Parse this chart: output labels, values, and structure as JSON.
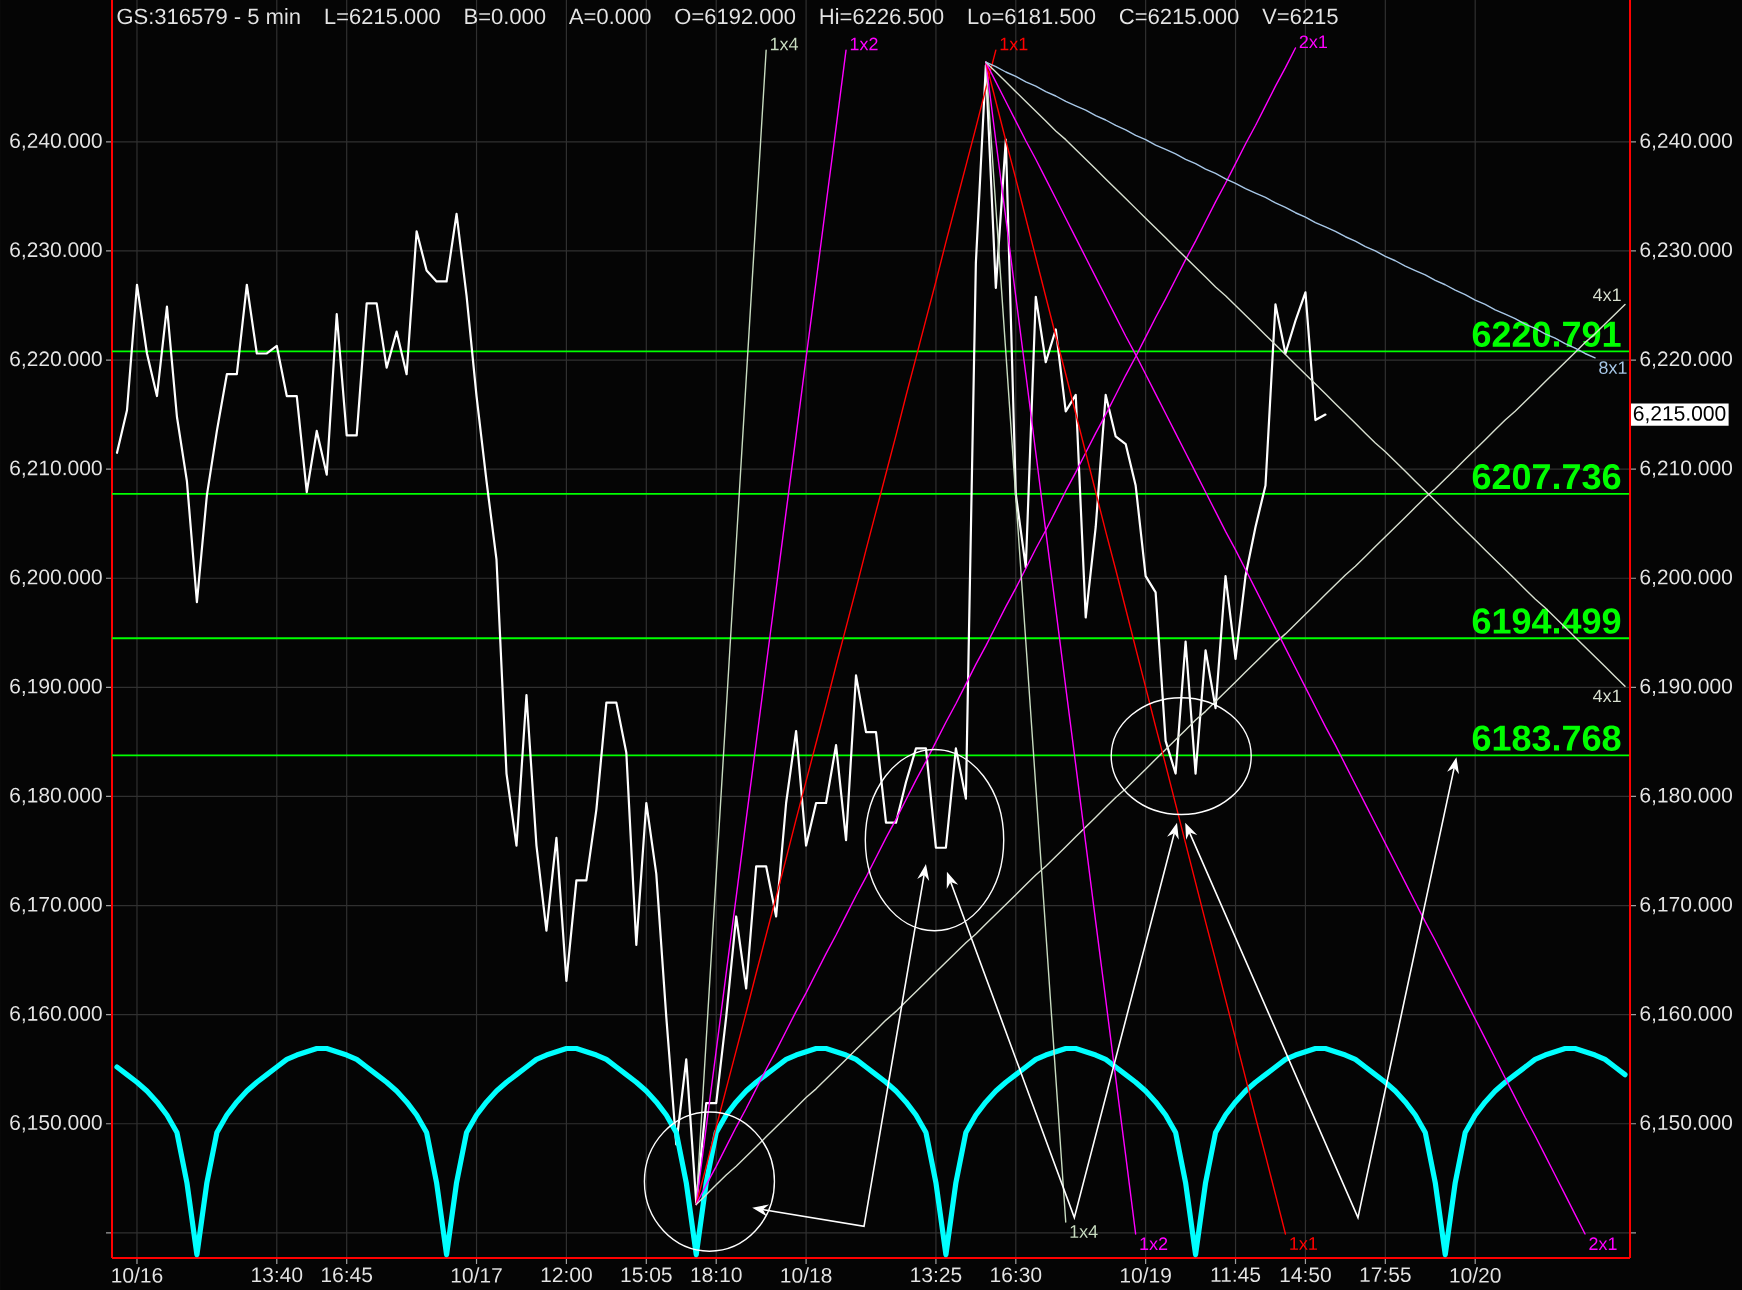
{
  "chart_data": {
    "type": "line",
    "title": "GS:316579 - 5 min",
    "annotations": [
      "L=6215.000",
      "B=0.000",
      "A=0.000",
      "O=6192.000",
      "Hi=6226.500",
      "Lo=6181.500",
      "C=6215.000",
      "V=6215",
      "6,215.000"
    ],
    "categories": [
      null,
      null,
      "10/16",
      null,
      null,
      null,
      null,
      null,
      null,
      null,
      null,
      null,
      null,
      null,
      null,
      null,
      "13:40",
      null,
      null,
      null,
      null,
      null,
      null,
      "16:45",
      null,
      null,
      null,
      null,
      null,
      null,
      null,
      null,
      null,
      null,
      null,
      null,
      "10/17",
      null,
      null,
      null,
      null,
      null,
      null,
      null,
      null,
      "12:00",
      null,
      null,
      null,
      null,
      null,
      null,
      null,
      "15:05",
      null,
      null,
      null,
      null,
      null,
      null,
      "18:10",
      null,
      null,
      null,
      null,
      null,
      null,
      null,
      null,
      "10/18",
      null,
      null,
      null,
      null,
      null,
      null,
      null,
      null,
      null,
      null,
      null,
      null,
      "13:25",
      null,
      null,
      null,
      null,
      null,
      null,
      null,
      "16:30",
      null,
      null,
      null,
      null,
      null,
      null,
      null,
      null,
      null,
      null,
      null,
      null,
      "10/19",
      null,
      null,
      null,
      null,
      null,
      null,
      null,
      null,
      "11:45",
      null,
      null,
      null,
      null,
      null,
      null,
      "14:50",
      null,
      null,
      null,
      null,
      null,
      null,
      null,
      "17:55",
      null,
      null,
      null,
      null,
      null,
      null,
      null,
      null,
      "10/20",
      null,
      null,
      null,
      null,
      null,
      null,
      null,
      null,
      null,
      null,
      null,
      null,
      null,
      null,
      null
    ],
    "ylim": [
      6137.7,
      6253
    ],
    "yticks": [
      {
        "value": 6140,
        "label": null
      },
      {
        "value": 6150,
        "label": "6,150.000"
      },
      {
        "value": 6160,
        "label": "6,160.000"
      },
      {
        "value": 6170,
        "label": "6,170.000"
      },
      {
        "value": 6180,
        "label": "6,180.000"
      },
      {
        "value": 6190,
        "label": "6,190.000"
      },
      {
        "value": 6200,
        "label": "6,200.000"
      },
      {
        "value": 6210,
        "label": "6,210.000"
      },
      {
        "value": 6220,
        "label": "6,220.000"
      },
      {
        "value": 6230,
        "label": "6,230.000"
      },
      {
        "value": 6240,
        "label": "6,240.000"
      }
    ],
    "y2lim": [
      6137.7,
      6253
    ],
    "y2ticks": [
      {
        "value": 6140,
        "label": null
      },
      {
        "value": 6150,
        "label": "6,150.000"
      },
      {
        "value": 6160,
        "label": "6,160.000"
      },
      {
        "value": 6170,
        "label": "6,170.000"
      },
      {
        "value": 6180,
        "label": "6,180.000"
      },
      {
        "value": 6190,
        "label": "6,190.000"
      },
      {
        "value": 6200,
        "label": "6,200.000"
      },
      {
        "value": 6210,
        "label": "6,210.000"
      },
      {
        "value": 6220,
        "label": "6,220.000"
      },
      {
        "value": 6230,
        "label": "6,230.000"
      },
      {
        "value": 6240,
        "label": "6,240.000"
      }
    ],
    "grid": true,
    "ref_lines": [
      {
        "axis": "y",
        "value": 6220.791,
        "label": "6220.791",
        "color": "#00ff00"
      },
      {
        "axis": "y",
        "value": 6207.736,
        "label": "6207.736",
        "color": "#00ff00"
      },
      {
        "axis": "y",
        "value": 6194.499,
        "label": "6194.499",
        "color": "#00ff00"
      },
      {
        "axis": "y",
        "value": 6183.768,
        "label": "6183.768",
        "color": "#00ff00"
      }
    ],
    "series": [
      {
        "color": "#ffffff",
        "values": [
          6211.5,
          6215.4,
          6226.9,
          6220.6,
          6216.7,
          6224.9,
          6214.8,
          6208.9,
          6197.8,
          6207.6,
          6213.5,
          6218.7,
          6218.7,
          6226.9,
          6220.6,
          6220.6,
          6221.3,
          6216.7,
          6216.7,
          6207.9,
          6213.5,
          6209.5,
          6224.2,
          6213.1,
          6213.1,
          6225.2,
          6225.2,
          6219.3,
          6222.6,
          6218.7,
          6231.8,
          6228.2,
          6227.2,
          6227.2,
          6233.4,
          6225.9,
          6216.7,
          6208.9,
          6201.7,
          6182.1,
          6175.5,
          6189.3,
          6175.5,
          6167.7,
          6176.2,
          6163.1,
          6172.3,
          6172.3,
          6178.8,
          6188.6,
          6188.6,
          6184.0,
          6166.4,
          6179.4,
          6172.9,
          6159.8,
          6148.1,
          6155.9,
          6142.8,
          6151.9,
          6151.9,
          6159.8,
          6169.0,
          6162.4,
          6173.6,
          6173.6,
          6169.0,
          6179.4,
          6186.0,
          6175.5,
          6179.4,
          6179.4,
          6184.7,
          6176.0,
          6191.1,
          6185.9,
          6185.9,
          6177.6,
          6177.6,
          6181.3,
          6184.4,
          6184.4,
          6175.3,
          6175.3,
          6184.4,
          6179.8,
          6228.9,
          6247.0,
          6226.6,
          6240.2,
          6207.7,
          6201.0,
          6225.8,
          6219.8,
          6222.8,
          6215.3,
          6216.8,
          6196.4,
          6204.7,
          6216.8,
          6213.0,
          6212.3,
          6208.5,
          6200.2,
          6198.7,
          6185.1,
          6182.1,
          6194.2,
          6182.1,
          6193.4,
          6188.1,
          6200.2,
          6192.6,
          6200.2,
          6204.7,
          6208.5,
          6225.1,
          6220.6,
          6223.6,
          6226.2,
          6214.5,
          6215.0,
          null,
          null,
          null,
          null,
          null,
          null,
          null,
          null,
          null,
          null,
          null,
          null,
          null,
          null,
          null,
          null,
          null,
          null,
          null,
          null,
          null,
          null,
          null,
          null,
          null,
          null,
          null,
          null,
          null,
          null
        ]
      },
      {
        "color": "#00ffff",
        "values": [
          6155.2,
          6154.5,
          6153.8,
          6153.0,
          6152.0,
          6150.8,
          6149.2,
          6144.6,
          6138.0,
          6144.6,
          6149.2,
          6150.8,
          6152.0,
          6153.0,
          6153.8,
          6154.5,
          6155.2,
          6155.9,
          6156.3,
          6156.6,
          6156.9,
          6156.9,
          6156.6,
          6156.3,
          6155.9,
          6155.2,
          6154.5,
          6153.8,
          6153.0,
          6152.0,
          6150.8,
          6149.2,
          6144.6,
          6138.0,
          6144.6,
          6149.2,
          6150.8,
          6152.0,
          6153.0,
          6153.8,
          6154.5,
          6155.2,
          6155.9,
          6156.3,
          6156.6,
          6156.9,
          6156.9,
          6156.6,
          6156.3,
          6155.9,
          6155.2,
          6154.5,
          6153.8,
          6153.0,
          6152.0,
          6150.8,
          6149.2,
          6144.6,
          6138.0,
          6144.6,
          6149.2,
          6150.8,
          6152.0,
          6153.0,
          6153.8,
          6154.5,
          6155.2,
          6155.9,
          6156.3,
          6156.6,
          6156.9,
          6156.9,
          6156.6,
          6156.3,
          6155.9,
          6155.2,
          6154.5,
          6153.8,
          6153.0,
          6152.0,
          6150.8,
          6149.2,
          6144.6,
          6138.0,
          6144.6,
          6149.2,
          6150.8,
          6152.0,
          6153.0,
          6153.8,
          6154.5,
          6155.2,
          6155.9,
          6156.3,
          6156.6,
          6156.9,
          6156.9,
          6156.6,
          6156.3,
          6155.9,
          6155.2,
          6154.5,
          6153.8,
          6153.0,
          6152.0,
          6150.8,
          6149.2,
          6144.6,
          6138.0,
          6144.6,
          6149.2,
          6150.8,
          6152.0,
          6153.0,
          6153.8,
          6154.5,
          6155.2,
          6155.9,
          6156.3,
          6156.6,
          6156.9,
          6156.9,
          6156.6,
          6156.3,
          6155.9,
          6155.2,
          6154.5,
          6153.8,
          6153.0,
          6152.0,
          6150.8,
          6149.2,
          6144.6,
          6138.0,
          6144.6,
          6149.2,
          6150.8,
          6152.0,
          6153.0,
          6153.8,
          6154.5,
          6155.2,
          6155.9,
          6156.3,
          6156.6,
          6156.9,
          6156.9,
          6156.6,
          6156.3,
          6155.9,
          6155.2,
          6154.5
        ]
      },
      {
        "name": "1x4",
        "color": "#c8dcc0",
        "values": [
          null,
          null,
          null,
          null,
          null,
          null,
          null,
          null,
          null,
          null,
          null,
          null,
          null,
          null,
          null,
          null,
          null,
          null,
          null,
          null,
          null,
          null,
          null,
          null,
          null,
          null,
          null,
          null,
          null,
          null,
          null,
          null,
          null,
          null,
          null,
          null,
          null,
          null,
          null,
          null,
          null,
          null,
          null,
          null,
          null,
          null,
          null,
          null,
          null,
          null,
          null,
          null,
          null,
          null,
          null,
          null,
          null,
          null,
          6142.6,
          6157.7,
          6172.8,
          6187.9,
          6203.1,
          6218.2,
          6233.3,
          6248.4,
          null,
          null,
          null,
          null,
          null,
          null,
          null,
          null,
          null,
          null,
          null,
          null,
          null,
          null,
          null,
          null,
          null,
          null,
          null,
          null,
          null,
          null,
          null,
          null,
          null,
          null,
          null,
          null,
          null,
          null,
          null,
          null,
          null,
          null,
          null,
          null,
          null,
          null,
          null,
          null,
          null,
          null,
          null,
          null,
          null,
          null,
          null,
          null,
          null,
          null,
          null,
          null,
          null,
          null,
          null,
          null,
          null,
          null,
          null,
          null,
          null,
          null,
          null,
          null,
          null,
          null,
          null,
          null,
          null,
          null,
          null,
          null,
          null,
          null,
          null,
          null,
          null,
          null,
          null,
          null,
          null,
          null,
          null,
          null,
          null,
          null
        ]
      },
      {
        "name": "1x2",
        "color": "#ff00ff",
        "values": [
          null,
          null,
          null,
          null,
          null,
          null,
          null,
          null,
          null,
          null,
          null,
          null,
          null,
          null,
          null,
          null,
          null,
          null,
          null,
          null,
          null,
          null,
          null,
          null,
          null,
          null,
          null,
          null,
          null,
          null,
          null,
          null,
          null,
          null,
          null,
          null,
          null,
          null,
          null,
          null,
          null,
          null,
          null,
          null,
          null,
          null,
          null,
          null,
          null,
          null,
          null,
          null,
          null,
          null,
          null,
          null,
          null,
          null,
          6142.6,
          6149.7,
          6156.7,
          6163.8,
          6170.8,
          6177.9,
          6184.9,
          6192.0,
          6199.0,
          6206.1,
          6213.1,
          6220.2,
          6227.2,
          6234.3,
          6241.3,
          6248.4,
          null,
          null,
          null,
          null,
          null,
          null,
          null,
          null,
          null,
          null,
          null,
          null,
          null,
          null,
          null,
          null,
          null,
          null,
          null,
          null,
          null,
          null,
          null,
          null,
          null,
          null,
          null,
          null,
          null,
          null,
          null,
          null,
          null,
          null,
          null,
          null,
          null,
          null,
          null,
          null,
          null,
          null,
          null,
          null,
          null,
          null,
          null,
          null,
          null,
          null,
          null,
          null,
          null,
          null,
          null,
          null,
          null,
          null,
          null,
          null,
          null,
          null,
          null,
          null,
          null,
          null,
          null,
          null,
          null,
          null,
          null,
          null,
          null,
          null,
          null,
          null,
          null,
          null
        ]
      },
      {
        "name": "1x1",
        "color": "#ff0000",
        "values": [
          null,
          null,
          null,
          null,
          null,
          null,
          null,
          null,
          null,
          null,
          null,
          null,
          null,
          null,
          null,
          null,
          null,
          null,
          null,
          null,
          null,
          null,
          null,
          null,
          null,
          null,
          null,
          null,
          null,
          null,
          null,
          null,
          null,
          null,
          null,
          null,
          null,
          null,
          null,
          null,
          null,
          null,
          null,
          null,
          null,
          null,
          null,
          null,
          null,
          null,
          null,
          null,
          null,
          null,
          null,
          null,
          null,
          null,
          6142.6,
          6146.1,
          6149.7,
          6153.2,
          6156.7,
          6160.2,
          6163.8,
          6167.3,
          6170.8,
          6174.3,
          6177.9,
          6181.4,
          6184.9,
          6188.4,
          6192.0,
          6195.5,
          6199.0,
          6202.6,
          6206.1,
          6209.6,
          6213.1,
          6216.7,
          6220.2,
          6223.7,
          6227.2,
          6230.8,
          6234.3,
          6237.8,
          6241.3,
          6244.9,
          6248.4,
          null,
          null,
          null,
          null,
          null,
          null,
          null,
          null,
          null,
          null,
          null,
          null,
          null,
          null,
          null,
          null,
          null,
          null,
          null,
          null,
          null,
          null,
          null,
          null,
          null,
          null,
          null,
          null,
          null,
          null,
          null,
          null,
          null,
          null,
          null,
          null,
          null,
          null,
          null,
          null,
          null,
          null,
          null,
          null,
          null,
          null,
          null,
          null,
          null,
          null,
          null,
          null,
          null,
          null,
          null,
          null,
          null,
          null,
          null,
          null,
          null,
          null,
          null
        ]
      },
      {
        "name": "2x1",
        "color": "#ff00ff",
        "values": [
          null,
          null,
          null,
          null,
          null,
          null,
          null,
          null,
          null,
          null,
          null,
          null,
          null,
          null,
          null,
          null,
          null,
          null,
          null,
          null,
          null,
          null,
          null,
          null,
          null,
          null,
          null,
          null,
          null,
          null,
          null,
          null,
          null,
          null,
          null,
          null,
          null,
          null,
          null,
          null,
          null,
          null,
          null,
          null,
          null,
          null,
          null,
          null,
          null,
          null,
          null,
          null,
          null,
          null,
          null,
          null,
          null,
          null,
          6142.6,
          6144.4,
          6146.1,
          6147.9,
          6149.7,
          6151.4,
          6153.2,
          6155.0,
          6156.7,
          6158.5,
          6160.3,
          6162.0,
          6163.8,
          6165.6,
          6167.3,
          6169.1,
          6170.9,
          6172.6,
          6174.4,
          6176.2,
          6177.9,
          6179.7,
          6181.5,
          6183.2,
          6185.0,
          6186.8,
          6188.5,
          6190.3,
          6192.1,
          6193.8,
          6195.6,
          6197.4,
          6199.1,
          6200.9,
          6202.7,
          6204.4,
          6206.2,
          6208.0,
          6209.7,
          6211.5,
          6213.3,
          6215.0,
          6216.8,
          6218.6,
          6220.3,
          6222.1,
          6223.9,
          6225.6,
          6227.4,
          6229.2,
          6230.9,
          6232.7,
          6234.5,
          6236.2,
          6238.0,
          6239.8,
          6241.5,
          6243.3,
          6245.1,
          6246.8,
          6248.6,
          null,
          null,
          null,
          null,
          null,
          null,
          null,
          null,
          null,
          null,
          null,
          null,
          null,
          null,
          null,
          null,
          null,
          null,
          null,
          null,
          null,
          null,
          null,
          null,
          null,
          null,
          null,
          null,
          null,
          null,
          null,
          null,
          null
        ]
      },
      {
        "name": "4x1",
        "color": "#d8e0d0",
        "values": [
          null,
          null,
          null,
          null,
          null,
          null,
          null,
          null,
          null,
          null,
          null,
          null,
          null,
          null,
          null,
          null,
          null,
          null,
          null,
          null,
          null,
          null,
          null,
          null,
          null,
          null,
          null,
          null,
          null,
          null,
          null,
          null,
          null,
          null,
          null,
          null,
          null,
          null,
          null,
          null,
          null,
          null,
          null,
          null,
          null,
          null,
          null,
          null,
          null,
          null,
          null,
          null,
          null,
          null,
          null,
          null,
          null,
          null,
          6142.6,
          6143.5,
          6144.4,
          6145.3,
          6146.1,
          6147.0,
          6147.9,
          6148.8,
          6149.7,
          6150.6,
          6151.5,
          6152.4,
          6153.2,
          6154.1,
          6155.0,
          6155.9,
          6156.8,
          6157.7,
          6158.6,
          6159.5,
          6160.3,
          6161.2,
          6162.1,
          6163.0,
          6163.9,
          6164.8,
          6165.7,
          6166.6,
          6167.4,
          6168.3,
          6169.2,
          6170.1,
          6171.0,
          6171.9,
          6172.8,
          6173.6,
          6174.5,
          6175.4,
          6176.3,
          6177.2,
          6178.1,
          6179.0,
          6179.9,
          6180.7,
          6181.6,
          6182.5,
          6183.4,
          6184.3,
          6185.2,
          6186.1,
          6187.0,
          6187.8,
          6188.7,
          6189.6,
          6190.5,
          6191.4,
          6192.3,
          6193.2,
          6194.1,
          6194.9,
          6195.8,
          6196.7,
          6197.6,
          6198.5,
          6199.4,
          6200.3,
          6201.1,
          6202.0,
          6202.9,
          6203.8,
          6204.7,
          6205.6,
          6206.5,
          6207.4,
          6208.2,
          6209.1,
          6210.0,
          6210.9,
          6211.8,
          6212.7,
          6213.6,
          6214.5,
          6215.3,
          6216.2,
          6217.1,
          6218.0,
          6218.9,
          6219.8,
          6220.7,
          6221.6,
          6222.4,
          6223.3,
          6224.2,
          6225.1
        ]
      },
      {
        "name": "1x4",
        "color": "#c8dcc0",
        "values": [
          null,
          null,
          null,
          null,
          null,
          null,
          null,
          null,
          null,
          null,
          null,
          null,
          null,
          null,
          null,
          null,
          null,
          null,
          null,
          null,
          null,
          null,
          null,
          null,
          null,
          null,
          null,
          null,
          null,
          null,
          null,
          null,
          null,
          null,
          null,
          null,
          null,
          null,
          null,
          null,
          null,
          null,
          null,
          null,
          null,
          null,
          null,
          null,
          null,
          null,
          null,
          null,
          null,
          null,
          null,
          null,
          null,
          null,
          null,
          null,
          null,
          null,
          null,
          null,
          null,
          null,
          null,
          null,
          null,
          null,
          null,
          null,
          null,
          null,
          null,
          null,
          null,
          null,
          null,
          null,
          null,
          null,
          null,
          null,
          null,
          null,
          null,
          6247.3,
          6234.0,
          6220.7,
          6207.4,
          6194.2,
          6180.9,
          6167.6,
          6154.3,
          6141.0,
          null,
          null,
          null,
          null,
          null,
          null,
          null,
          null,
          null,
          null,
          null,
          null,
          null,
          null,
          null,
          null,
          null,
          null,
          null,
          null,
          null,
          null,
          null,
          null,
          null,
          null,
          null,
          null,
          null,
          null,
          null,
          null,
          null,
          null,
          null,
          null,
          null,
          null,
          null,
          null,
          null,
          null,
          null,
          null,
          null,
          null,
          null,
          null,
          null,
          null,
          null,
          null,
          null,
          null,
          null,
          null
        ]
      },
      {
        "name": "1x2",
        "color": "#ff00ff",
        "values": [
          null,
          null,
          null,
          null,
          null,
          null,
          null,
          null,
          null,
          null,
          null,
          null,
          null,
          null,
          null,
          null,
          null,
          null,
          null,
          null,
          null,
          null,
          null,
          null,
          null,
          null,
          null,
          null,
          null,
          null,
          null,
          null,
          null,
          null,
          null,
          null,
          null,
          null,
          null,
          null,
          null,
          null,
          null,
          null,
          null,
          null,
          null,
          null,
          null,
          null,
          null,
          null,
          null,
          null,
          null,
          null,
          null,
          null,
          null,
          null,
          null,
          null,
          null,
          null,
          null,
          null,
          null,
          null,
          null,
          null,
          null,
          null,
          null,
          null,
          null,
          null,
          null,
          null,
          null,
          null,
          null,
          null,
          null,
          null,
          null,
          null,
          null,
          6247.3,
          6240.1,
          6233.0,
          6225.8,
          6218.7,
          6211.5,
          6204.3,
          6197.2,
          6190.0,
          6182.9,
          6175.7,
          6168.5,
          6161.4,
          6154.2,
          6147.1,
          6139.9,
          null,
          null,
          null,
          null,
          null,
          null,
          null,
          null,
          null,
          null,
          null,
          null,
          null,
          null,
          null,
          null,
          null,
          null,
          null,
          null,
          null,
          null,
          null,
          null,
          null,
          null,
          null,
          null,
          null,
          null,
          null,
          null,
          null,
          null,
          null,
          null,
          null,
          null,
          null,
          null,
          null,
          null,
          null,
          null,
          null,
          null,
          null,
          null,
          null
        ]
      },
      {
        "name": "1x1",
        "color": "#ff0000",
        "values": [
          null,
          null,
          null,
          null,
          null,
          null,
          null,
          null,
          null,
          null,
          null,
          null,
          null,
          null,
          null,
          null,
          null,
          null,
          null,
          null,
          null,
          null,
          null,
          null,
          null,
          null,
          null,
          null,
          null,
          null,
          null,
          null,
          null,
          null,
          null,
          null,
          null,
          null,
          null,
          null,
          null,
          null,
          null,
          null,
          null,
          null,
          null,
          null,
          null,
          null,
          null,
          null,
          null,
          null,
          null,
          null,
          null,
          null,
          null,
          null,
          null,
          null,
          null,
          null,
          null,
          null,
          null,
          null,
          null,
          null,
          null,
          null,
          null,
          null,
          null,
          null,
          null,
          null,
          null,
          null,
          null,
          null,
          null,
          null,
          null,
          null,
          null,
          6247.3,
          6243.7,
          6240.1,
          6236.6,
          6233.0,
          6229.4,
          6225.8,
          6222.2,
          6218.7,
          6215.1,
          6211.5,
          6207.9,
          6204.3,
          6200.8,
          6197.2,
          6193.6,
          6190.0,
          6186.4,
          6182.9,
          6179.3,
          6175.7,
          6172.1,
          6168.5,
          6165.0,
          6161.4,
          6157.8,
          6154.2,
          6150.6,
          6147.1,
          6143.5,
          6139.9,
          null,
          null,
          null,
          null,
          null,
          null,
          null,
          null,
          null,
          null,
          null,
          null,
          null,
          null,
          null,
          null,
          null,
          null,
          null,
          null,
          null,
          null,
          null,
          null,
          null,
          null,
          null,
          null,
          null,
          null,
          null,
          null,
          null,
          null
        ]
      },
      {
        "name": "2x1",
        "color": "#ff00ff",
        "values": [
          null,
          null,
          null,
          null,
          null,
          null,
          null,
          null,
          null,
          null,
          null,
          null,
          null,
          null,
          null,
          null,
          null,
          null,
          null,
          null,
          null,
          null,
          null,
          null,
          null,
          null,
          null,
          null,
          null,
          null,
          null,
          null,
          null,
          null,
          null,
          null,
          null,
          null,
          null,
          null,
          null,
          null,
          null,
          null,
          null,
          null,
          null,
          null,
          null,
          null,
          null,
          null,
          null,
          null,
          null,
          null,
          null,
          null,
          null,
          null,
          null,
          null,
          null,
          null,
          null,
          null,
          null,
          null,
          null,
          null,
          null,
          null,
          null,
          null,
          null,
          null,
          null,
          null,
          null,
          null,
          null,
          null,
          null,
          null,
          null,
          null,
          null,
          6247.3,
          6245.5,
          6243.7,
          6241.9,
          6240.1,
          6238.4,
          6236.6,
          6234.8,
          6233.0,
          6231.2,
          6229.4,
          6227.6,
          6225.8,
          6224.0,
          6222.2,
          6220.5,
          6218.7,
          6216.9,
          6215.1,
          6213.3,
          6211.5,
          6209.7,
          6207.9,
          6206.1,
          6204.3,
          6202.6,
          6200.8,
          6199.0,
          6197.2,
          6195.4,
          6193.6,
          6191.8,
          6190.0,
          6188.2,
          6186.4,
          6184.7,
          6182.9,
          6181.1,
          6179.3,
          6177.5,
          6175.7,
          6173.9,
          6172.1,
          6170.3,
          6168.5,
          6166.8,
          6165.0,
          6163.2,
          6161.4,
          6159.6,
          6157.8,
          6156.0,
          6154.2,
          6152.4,
          6150.6,
          6148.9,
          6147.1,
          6145.3,
          6143.5,
          6141.7,
          6139.9,
          null,
          null,
          null,
          null
        ]
      },
      {
        "name": "4x1",
        "color": "#d8e0d0",
        "values": [
          null,
          null,
          null,
          null,
          null,
          null,
          null,
          null,
          null,
          null,
          null,
          null,
          null,
          null,
          null,
          null,
          null,
          null,
          null,
          null,
          null,
          null,
          null,
          null,
          null,
          null,
          null,
          null,
          null,
          null,
          null,
          null,
          null,
          null,
          null,
          null,
          null,
          null,
          null,
          null,
          null,
          null,
          null,
          null,
          null,
          null,
          null,
          null,
          null,
          null,
          null,
          null,
          null,
          null,
          null,
          null,
          null,
          null,
          null,
          null,
          null,
          null,
          null,
          null,
          null,
          null,
          null,
          null,
          null,
          null,
          null,
          null,
          null,
          null,
          null,
          null,
          null,
          null,
          null,
          null,
          null,
          null,
          null,
          null,
          null,
          null,
          null,
          6247.3,
          6246.4,
          6245.5,
          6244.6,
          6243.7,
          6242.8,
          6241.9,
          6241.0,
          6240.2,
          6239.3,
          6238.4,
          6237.5,
          6236.6,
          6235.7,
          6234.8,
          6233.9,
          6233.0,
          6232.1,
          6231.2,
          6230.3,
          6229.4,
          6228.5,
          6227.6,
          6226.7,
          6225.9,
          6225.0,
          6224.1,
          6223.2,
          6222.3,
          6221.4,
          6220.5,
          6219.6,
          6218.7,
          6217.8,
          6216.9,
          6216.0,
          6215.1,
          6214.2,
          6213.3,
          6212.4,
          6211.6,
          6210.7,
          6209.8,
          6208.9,
          6208.0,
          6207.1,
          6206.2,
          6205.3,
          6204.4,
          6203.5,
          6202.6,
          6201.7,
          6200.8,
          6199.9,
          6199.0,
          6198.1,
          6197.3,
          6196.4,
          6195.5,
          6194.6,
          6193.7,
          6192.8,
          6191.9,
          6191.0,
          6190.1
        ]
      },
      {
        "name": "8x1",
        "color": "#a8c8e8",
        "values": [
          null,
          null,
          null,
          null,
          null,
          null,
          null,
          null,
          null,
          null,
          null,
          null,
          null,
          null,
          null,
          null,
          null,
          null,
          null,
          null,
          null,
          null,
          null,
          null,
          null,
          null,
          null,
          null,
          null,
          null,
          null,
          null,
          null,
          null,
          null,
          null,
          null,
          null,
          null,
          null,
          null,
          null,
          null,
          null,
          null,
          null,
          null,
          null,
          null,
          null,
          null,
          null,
          null,
          null,
          null,
          null,
          null,
          null,
          null,
          null,
          null,
          null,
          null,
          null,
          null,
          null,
          null,
          null,
          null,
          null,
          null,
          null,
          null,
          null,
          null,
          null,
          null,
          null,
          null,
          null,
          null,
          null,
          null,
          null,
          null,
          null,
          null,
          6247.3,
          6246.9,
          6246.4,
          6246.0,
          6245.5,
          6245.1,
          6244.6,
          6244.2,
          6243.7,
          6243.3,
          6242.9,
          6242.4,
          6242.0,
          6241.5,
          6241.1,
          6240.6,
          6240.2,
          6239.7,
          6239.3,
          6238.9,
          6238.4,
          6238.0,
          6237.5,
          6237.1,
          6236.6,
          6236.2,
          6235.7,
          6235.3,
          6234.9,
          6234.4,
          6234.0,
          6233.5,
          6233.1,
          6232.6,
          6232.2,
          6231.8,
          6231.3,
          6230.9,
          6230.4,
          6230.0,
          6229.5,
          6229.1,
          6228.6,
          6228.2,
          6227.8,
          6227.3,
          6226.9,
          6226.4,
          6226.0,
          6225.5,
          6225.1,
          6224.6,
          6224.2,
          6223.8,
          6223.3,
          6222.9,
          6222.4,
          6222.0,
          6221.5,
          6221.1,
          6220.6,
          6220.2,
          null,
          null,
          null
        ]
      }
    ]
  }
}
